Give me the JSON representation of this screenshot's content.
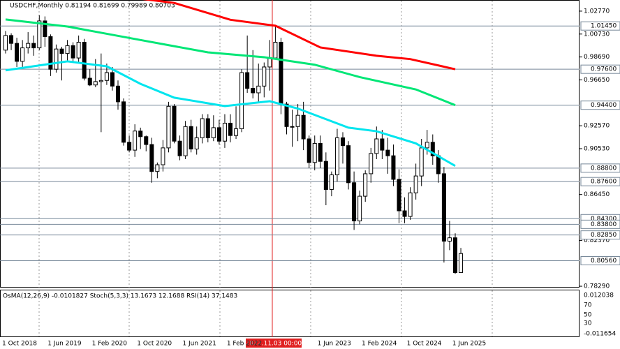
{
  "chart_data": {
    "type": "candlestick",
    "title": "USDCHF,Monthly  0.81194 0.81699 0.79989 0.80703",
    "candles": [
      [
        0.993,
        1.01,
        0.99,
        1.006
      ],
      [
        1.006,
        1.008,
        0.993,
        0.999
      ],
      [
        0.999,
        1.004,
        0.978,
        0.983
      ],
      [
        0.983,
        1.002,
        0.977,
        0.995
      ],
      [
        0.995,
        1.009,
        0.99,
        0.999
      ],
      [
        0.999,
        1.006,
        0.988,
        0.995
      ],
      [
        0.995,
        1.024,
        0.993,
        1.019
      ],
      [
        1.019,
        1.023,
        0.996,
        1.005
      ],
      [
        1.005,
        1.007,
        0.97,
        0.976
      ],
      [
        0.976,
        0.998,
        0.973,
        0.994
      ],
      [
        0.994,
        0.996,
        0.966,
        0.99
      ],
      [
        0.99,
        1.002,
        0.982,
        0.997
      ],
      [
        0.997,
        1.0,
        0.983,
        0.986
      ],
      [
        0.986,
        1.006,
        0.982,
        1.0
      ],
      [
        1.0,
        1.003,
        0.966,
        0.968
      ],
      [
        0.968,
        0.976,
        0.961,
        0.962
      ],
      [
        0.962,
        0.985,
        0.96,
        0.965
      ],
      [
        0.965,
        0.99,
        0.92,
        0.966
      ],
      [
        0.966,
        0.981,
        0.962,
        0.973
      ],
      [
        0.973,
        0.978,
        0.957,
        0.961
      ],
      [
        0.961,
        0.966,
        0.94,
        0.947
      ],
      [
        0.947,
        0.95,
        0.908,
        0.911
      ],
      [
        0.911,
        0.917,
        0.902,
        0.904
      ],
      [
        0.904,
        0.927,
        0.898,
        0.921
      ],
      [
        0.921,
        0.924,
        0.905,
        0.916
      ],
      [
        0.916,
        0.917,
        0.903,
        0.909
      ],
      [
        0.909,
        0.915,
        0.875,
        0.885
      ],
      [
        0.885,
        0.893,
        0.879,
        0.891
      ],
      [
        0.891,
        0.913,
        0.885,
        0.906
      ],
      [
        0.906,
        0.947,
        0.902,
        0.943
      ],
      [
        0.943,
        0.945,
        0.91,
        0.912
      ],
      [
        0.912,
        0.917,
        0.895,
        0.899
      ],
      [
        0.899,
        0.93,
        0.896,
        0.925
      ],
      [
        0.925,
        0.931,
        0.902,
        0.905
      ],
      [
        0.905,
        0.925,
        0.9,
        0.915
      ],
      [
        0.915,
        0.936,
        0.91,
        0.932
      ],
      [
        0.932,
        0.936,
        0.911,
        0.915
      ],
      [
        0.915,
        0.935,
        0.912,
        0.924
      ],
      [
        0.924,
        0.931,
        0.909,
        0.912
      ],
      [
        0.912,
        0.936,
        0.906,
        0.928
      ],
      [
        0.928,
        0.936,
        0.911,
        0.917
      ],
      [
        0.917,
        0.943,
        0.914,
        0.923
      ],
      [
        0.923,
        0.976,
        0.92,
        0.973
      ],
      [
        0.973,
        1.006,
        0.955,
        0.959
      ],
      [
        0.959,
        0.993,
        0.95,
        0.955
      ],
      [
        0.955,
        0.981,
        0.947,
        0.961
      ],
      [
        0.961,
        0.982,
        0.951,
        0.978
      ],
      [
        0.978,
        1.002,
        0.957,
        0.986
      ],
      [
        0.986,
        1.015,
        0.985,
        1.0
      ],
      [
        1.0,
        1.004,
        0.936,
        0.945
      ],
      [
        0.945,
        0.947,
        0.918,
        0.925
      ],
      [
        0.925,
        0.94,
        0.907,
        0.925
      ],
      [
        0.925,
        0.945,
        0.912,
        0.935
      ],
      [
        0.935,
        0.947,
        0.904,
        0.914
      ],
      [
        0.914,
        0.917,
        0.888,
        0.893
      ],
      [
        0.893,
        0.917,
        0.886,
        0.91
      ],
      [
        0.91,
        0.917,
        0.888,
        0.894
      ],
      [
        0.894,
        0.902,
        0.855,
        0.869
      ],
      [
        0.869,
        0.885,
        0.863,
        0.882
      ],
      [
        0.882,
        0.923,
        0.876,
        0.915
      ],
      [
        0.915,
        0.92,
        0.892,
        0.908
      ],
      [
        0.908,
        0.912,
        0.869,
        0.875
      ],
      [
        0.875,
        0.885,
        0.833,
        0.841
      ],
      [
        0.841,
        0.868,
        0.838,
        0.863
      ],
      [
        0.863,
        0.886,
        0.858,
        0.883
      ],
      [
        0.883,
        0.906,
        0.875,
        0.901
      ],
      [
        0.901,
        0.925,
        0.896,
        0.914
      ],
      [
        0.914,
        0.922,
        0.896,
        0.904
      ],
      [
        0.904,
        0.915,
        0.883,
        0.899
      ],
      [
        0.899,
        0.909,
        0.872,
        0.878
      ],
      [
        0.878,
        0.887,
        0.839,
        0.85
      ],
      [
        0.85,
        0.862,
        0.839,
        0.845
      ],
      [
        0.845,
        0.871,
        0.842,
        0.866
      ],
      [
        0.866,
        0.892,
        0.86,
        0.881
      ],
      [
        0.881,
        0.914,
        0.872,
        0.906
      ],
      [
        0.906,
        0.922,
        0.9,
        0.911
      ],
      [
        0.911,
        0.918,
        0.891,
        0.899
      ],
      [
        0.899,
        0.904,
        0.875,
        0.883
      ],
      [
        0.883,
        0.889,
        0.804,
        0.823
      ],
      [
        0.823,
        0.841,
        0.815,
        0.826
      ],
      [
        0.826,
        0.83,
        0.794,
        0.795
      ],
      [
        0.795,
        0.817,
        0.795,
        0.812
      ]
    ],
    "moving_averages": [
      {
        "color": "#ff0000",
        "x": [
          22,
          30,
          40,
          48,
          56,
          66,
          72,
          80
        ],
        "values": [
          1.04,
          1.035,
          1.02,
          1.0147,
          0.9954,
          0.988,
          0.985,
          0.976
        ]
      },
      {
        "color": "#00e676",
        "x": [
          0,
          11,
          24,
          36,
          46,
          55,
          63,
          73,
          80
        ],
        "values": [
          1.0203,
          1.014,
          1.002,
          0.991,
          0.9867,
          0.98,
          0.969,
          0.958,
          0.944
        ]
      },
      {
        "color": "#00e5ee",
        "x": [
          0,
          11,
          18,
          24,
          30,
          39,
          47,
          52,
          61,
          66,
          73,
          80
        ],
        "values": [
          0.975,
          0.983,
          0.9786,
          0.963,
          0.9507,
          0.9432,
          0.9475,
          0.941,
          0.924,
          0.9208,
          0.91,
          0.89
        ]
      }
    ],
    "levels": [
      {
        "value": 1.0145,
        "label": "1.01450"
      },
      {
        "value": 0.976,
        "label": "0.97600"
      },
      {
        "value": 0.944,
        "label": "0.94400"
      },
      {
        "value": 0.888,
        "label": "0.88800"
      },
      {
        "value": 0.876,
        "label": "0.87600"
      },
      {
        "value": 0.843,
        "label": "0.84300"
      },
      {
        "value": 0.838,
        "label": "0.83800"
      },
      {
        "value": 0.8285,
        "label": "0.82850"
      },
      {
        "value": 0.8056,
        "label": "0.80560"
      }
    ],
    "ylim": [
      0.7817,
      1.0376
    ],
    "yticks": [
      {
        "value": 1.0277,
        "label": "1.02770"
      },
      {
        "value": 1.0073,
        "label": "1.00730"
      },
      {
        "value": 0.9869,
        "label": "0.98690"
      },
      {
        "value": 0.9665,
        "label": "0.96650"
      },
      {
        "value": 0.9257,
        "label": "0.92570"
      },
      {
        "value": 0.9053,
        "label": "0.90530"
      },
      {
        "value": 0.8645,
        "label": "0.86450"
      },
      {
        "value": 0.8237,
        "label": "0.82370"
      },
      {
        "value": 0.7829,
        "label": "0.78290"
      }
    ],
    "x_labels": [
      "1 Oct 2018",
      "1 Jun 2019",
      "1 Feb 2020",
      "1 Oct 2020",
      "1 Jun 2021",
      "1 Feb 2022",
      "1 Jun 2023",
      "1 Feb 2024",
      "1 Oct 2024",
      "1 Jun 2025"
    ],
    "crosshair_label": "2022.11.03 00:00",
    "indicator_panel": {
      "label": "OsMA(12,26,9) -0.0101827  Stoch(5,3,3) 13.1673 12.1688  RSI(14) 37.1483",
      "ticks": [
        "0.012038",
        "70",
        "50",
        "30",
        "-0.011654"
      ]
    }
  }
}
